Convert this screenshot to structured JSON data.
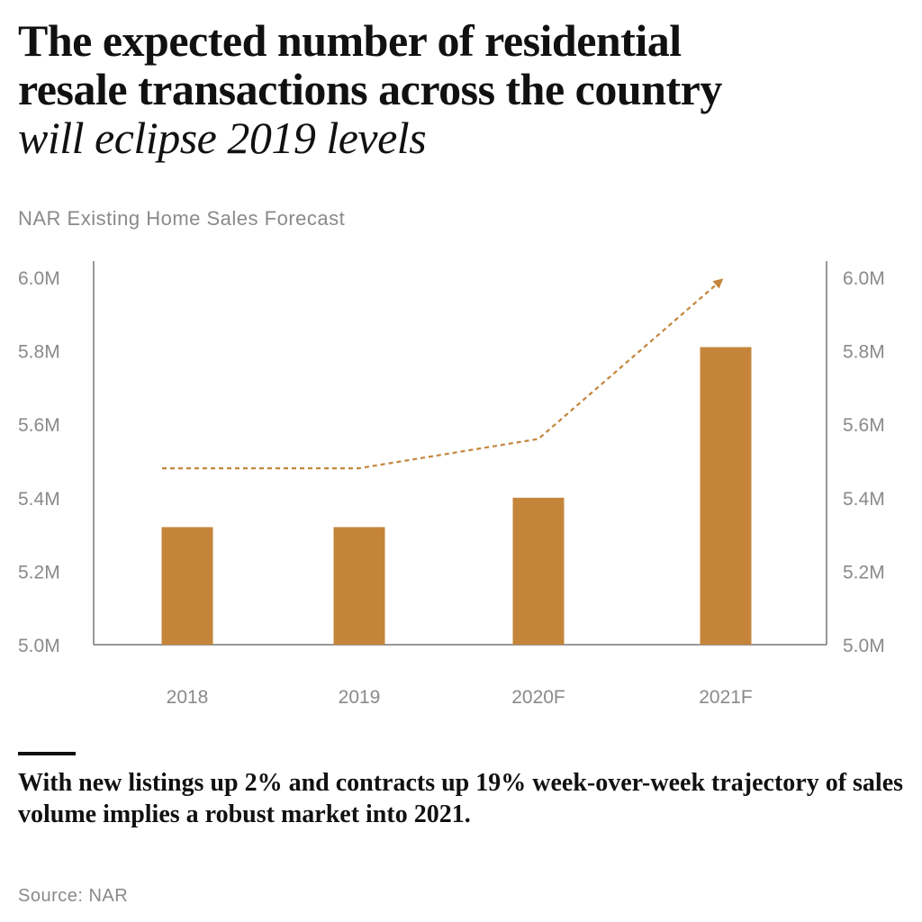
{
  "title_line1": "The expected number of residential",
  "title_line2": "resale transactions across the country",
  "title_italic": "will eclipse 2019 levels",
  "subtitle": "NAR Existing Home Sales Forecast",
  "note": "With new listings up 2% and contracts up 19% week-over-week trajectory of sales volume implies a robust market into 2021.",
  "source": "Source: NAR",
  "chart_data": {
    "type": "bar",
    "title": "NAR Existing Home Sales Forecast",
    "categories": [
      "2018",
      "2019",
      "2020F",
      "2021F"
    ],
    "series": [
      {
        "type": "bar",
        "values": [
          5.32,
          5.32,
          5.4,
          5.81
        ],
        "color": "#C4853A"
      },
      {
        "type": "line",
        "style": "dashed-arrow",
        "values": [
          5.48,
          5.48,
          5.56,
          5.99
        ],
        "color": "#C4853A"
      }
    ],
    "ylim": [
      5.0,
      6.0
    ],
    "yticks": [
      "5.0M",
      "5.2M",
      "5.4M",
      "5.6M",
      "5.8M",
      "6.0M"
    ],
    "ytick_values": [
      5.0,
      5.2,
      5.4,
      5.6,
      5.8,
      6.0
    ],
    "y_axes": "left-and-right",
    "grid": false,
    "xlabel": "",
    "ylabel": ""
  }
}
